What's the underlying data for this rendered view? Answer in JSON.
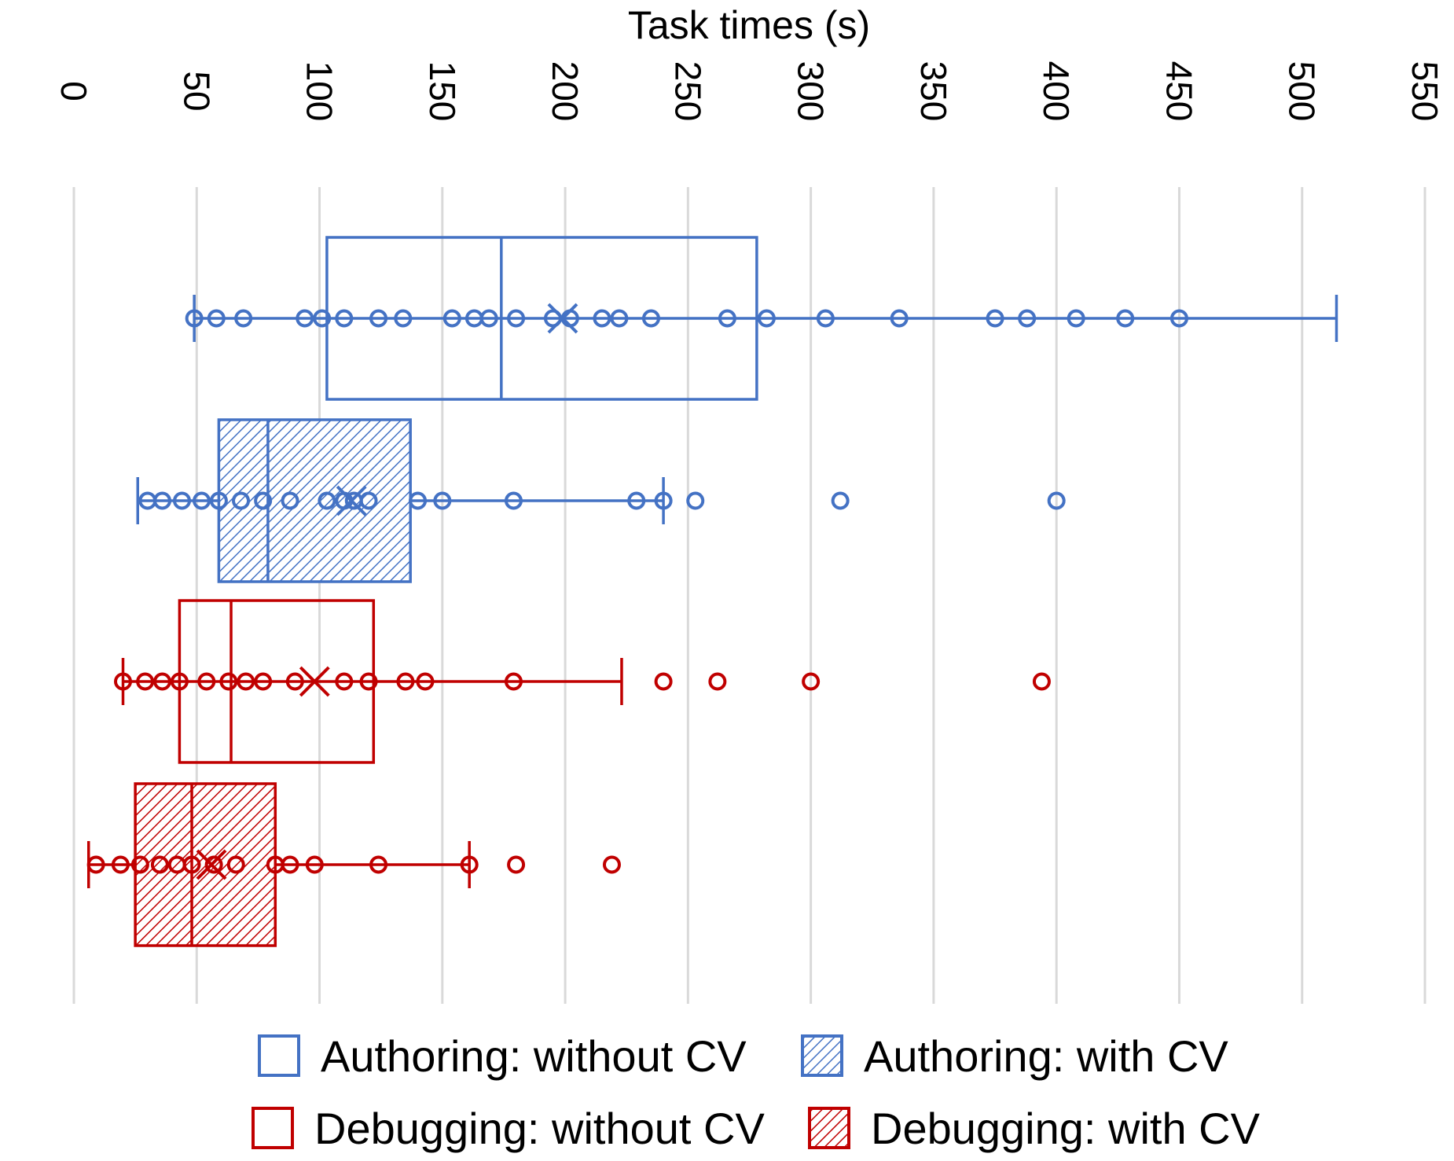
{
  "chart_data": {
    "type": "boxplot",
    "orientation": "horizontal",
    "title": "",
    "xlabel": "Task times (s)",
    "ylabel": "",
    "xlim": [
      0,
      550
    ],
    "xticks": [
      0,
      50,
      100,
      150,
      200,
      250,
      300,
      350,
      400,
      450,
      500,
      550
    ],
    "grid": true,
    "legend_position": "bottom",
    "series": [
      {
        "name": "Authoring: without CV",
        "color": "#4472C4",
        "fill": "none",
        "whisker_low": 49,
        "q1": 103,
        "median": 174,
        "q3": 278,
        "whisker_high": 514,
        "mean": 199,
        "points": [
          49,
          58,
          69,
          94,
          101,
          110,
          124,
          134,
          154,
          163,
          169,
          180,
          195,
          202,
          215,
          222,
          235,
          266,
          282,
          306,
          336,
          375,
          388,
          408,
          428,
          450
        ]
      },
      {
        "name": "Authoring: with CV",
        "color": "#4472C4",
        "fill": "hatched",
        "whisker_low": 26,
        "q1": 59,
        "median": 79,
        "q3": 137,
        "whisker_high": 240,
        "mean": 113,
        "points": [
          30,
          36,
          44,
          52,
          59,
          68,
          77,
          88,
          103,
          110,
          114,
          120,
          140,
          150,
          179,
          229,
          240,
          253,
          312,
          400
        ]
      },
      {
        "name": "Debugging: without CV",
        "color": "#C00000",
        "fill": "none",
        "whisker_low": 20,
        "q1": 43,
        "median": 64,
        "q3": 122,
        "whisker_high": 223,
        "mean": 98,
        "points": [
          20,
          29,
          36,
          43,
          54,
          63,
          70,
          77,
          90,
          110,
          120,
          135,
          143,
          179,
          240,
          262,
          300,
          394
        ]
      },
      {
        "name": "Debugging: with CV",
        "color": "#C00000",
        "fill": "hatched",
        "whisker_low": 6,
        "q1": 25,
        "median": 48,
        "q3": 82,
        "whisker_high": 161,
        "mean": 56,
        "points": [
          9,
          19,
          27,
          35,
          42,
          48,
          57,
          66,
          82,
          88,
          98,
          124,
          161,
          180,
          219
        ]
      }
    ]
  }
}
